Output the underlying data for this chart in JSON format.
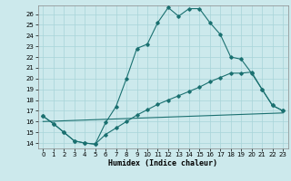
{
  "bg_color": "#cce9ec",
  "grid_color": "#a8d4d8",
  "line_color": "#1a7070",
  "xlabel": "Humidex (Indice chaleur)",
  "xlim": [
    -0.5,
    23.5
  ],
  "ylim": [
    13.5,
    26.8
  ],
  "xticks": [
    0,
    1,
    2,
    3,
    4,
    5,
    6,
    7,
    8,
    9,
    10,
    11,
    12,
    13,
    14,
    15,
    16,
    17,
    18,
    19,
    20,
    21,
    22,
    23
  ],
  "yticks": [
    14,
    15,
    16,
    17,
    18,
    19,
    20,
    21,
    22,
    23,
    24,
    25,
    26
  ],
  "curve1_x": [
    0,
    1,
    2,
    3,
    4,
    5,
    6,
    7,
    8,
    9,
    10,
    11,
    12,
    13,
    14,
    15,
    16,
    17,
    18,
    19,
    20,
    21,
    22,
    23
  ],
  "curve1_y": [
    16.5,
    15.8,
    15.0,
    14.2,
    14.0,
    13.9,
    15.9,
    17.4,
    20.0,
    22.8,
    23.2,
    25.2,
    26.6,
    25.8,
    26.5,
    26.5,
    25.2,
    24.1,
    22.0,
    21.8,
    20.5,
    19.0,
    17.5,
    17.0
  ],
  "curve2_x": [
    0,
    1,
    2,
    3,
    4,
    5,
    6,
    7,
    8,
    9,
    10,
    11,
    12,
    13,
    14,
    15,
    16,
    17,
    18,
    19,
    20,
    21,
    22,
    23
  ],
  "curve2_y": [
    16.5,
    15.8,
    15.0,
    14.2,
    14.0,
    13.9,
    14.8,
    15.4,
    16.0,
    16.6,
    17.1,
    17.6,
    18.0,
    18.4,
    18.8,
    19.2,
    19.7,
    20.1,
    20.5,
    20.5,
    20.6,
    19.0,
    17.5,
    17.0
  ],
  "line3_x": [
    0,
    23
  ],
  "line3_y": [
    16.0,
    16.8
  ]
}
